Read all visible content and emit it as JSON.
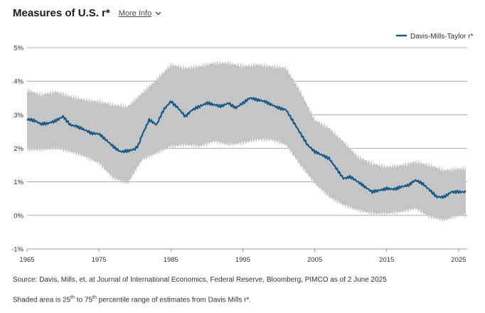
{
  "header": {
    "title": "Measures of U.S. r*",
    "more_info_label": "More Info"
  },
  "footer": {
    "source": "Source: Davis, Mills, et. at Journal of International Economics, Federal Reserve, Bloomberg, PIMCO as of 2 June 2025",
    "note_prefix": "Shaded area is 25",
    "note_sup1": "th",
    "note_mid": " to 75",
    "note_sup2": "th",
    "note_suffix": " percentile range of estimates from Davis Mills r*."
  },
  "chart_data": {
    "type": "line",
    "title": "Measures of U.S. r*",
    "xlabel": "",
    "ylabel": "",
    "xlim": [
      1965,
      2026.2
    ],
    "ylim": [
      -1,
      5
    ],
    "x_ticks": [
      "1965",
      "1975",
      "1985",
      "1995",
      "2005",
      "2015",
      "2025"
    ],
    "y_ticks": [
      "-1%",
      "0%",
      "1%",
      "2%",
      "3%",
      "4%",
      "5%"
    ],
    "grid": "horizontal",
    "legend": "top-right",
    "colors": {
      "line": "#1d5b84",
      "band": "#c4c5c7",
      "grid": "#9a9a9a"
    },
    "series": [
      {
        "name": "Davis-Mills-Taylor r*",
        "x": [
          1965,
          1966,
          1967,
          1968,
          1969,
          1970,
          1971,
          1972,
          1973,
          1974,
          1975,
          1976,
          1977,
          1978,
          1979,
          1980,
          1980.5,
          1981,
          1982,
          1983,
          1984,
          1985,
          1986,
          1987,
          1988,
          1989,
          1990,
          1991,
          1992,
          1993,
          1994,
          1995,
          1996,
          1997,
          1998,
          1999,
          2000,
          2001,
          2002,
          2003,
          2004,
          2005,
          2006,
          2007,
          2008,
          2009,
          2010,
          2011,
          2012,
          2013,
          2014,
          2015,
          2016,
          2017,
          2018,
          2019,
          2020,
          2021,
          2022,
          2023,
          2024,
          2025,
          2026
        ],
        "values": [
          2.87,
          2.83,
          2.72,
          2.75,
          2.82,
          2.95,
          2.7,
          2.65,
          2.55,
          2.45,
          2.43,
          2.25,
          2.05,
          1.9,
          1.92,
          1.98,
          2.1,
          2.4,
          2.85,
          2.7,
          3.15,
          3.4,
          3.2,
          2.95,
          3.15,
          3.25,
          3.35,
          3.3,
          3.25,
          3.35,
          3.2,
          3.35,
          3.5,
          3.45,
          3.4,
          3.3,
          3.2,
          3.15,
          2.8,
          2.45,
          2.1,
          1.9,
          1.8,
          1.7,
          1.4,
          1.1,
          1.15,
          1.0,
          0.85,
          0.7,
          0.75,
          0.8,
          0.78,
          0.85,
          0.9,
          1.05,
          0.95,
          0.75,
          0.55,
          0.55,
          0.7,
          0.7,
          0.7
        ]
      }
    ],
    "band": {
      "name": "25th to 75th percentile range",
      "x": [
        1965,
        1967,
        1969,
        1971,
        1973,
        1975,
        1977,
        1979,
        1981,
        1983,
        1985,
        1987,
        1989,
        1991,
        1993,
        1995,
        1997,
        1999,
        2001,
        2003,
        2005,
        2007,
        2009,
        2011,
        2013,
        2015,
        2017,
        2019,
        2021,
        2023,
        2025,
        2026
      ],
      "lower": [
        1.95,
        1.95,
        2.0,
        1.9,
        1.75,
        1.55,
        1.1,
        0.95,
        1.65,
        1.85,
        2.05,
        2.1,
        2.05,
        2.2,
        2.1,
        2.15,
        2.25,
        2.25,
        2.1,
        1.5,
        0.95,
        0.55,
        0.3,
        0.15,
        0.05,
        0.05,
        0.1,
        0.2,
        -0.05,
        -0.15,
        0.0,
        0.0
      ],
      "upper": [
        3.75,
        3.6,
        3.7,
        3.55,
        3.45,
        3.4,
        3.3,
        3.25,
        3.65,
        4.05,
        4.5,
        4.4,
        4.45,
        4.55,
        4.55,
        4.45,
        4.5,
        4.45,
        4.4,
        3.7,
        2.85,
        2.6,
        2.2,
        1.75,
        1.55,
        1.45,
        1.5,
        1.6,
        1.5,
        1.35,
        1.4,
        1.4
      ]
    }
  }
}
